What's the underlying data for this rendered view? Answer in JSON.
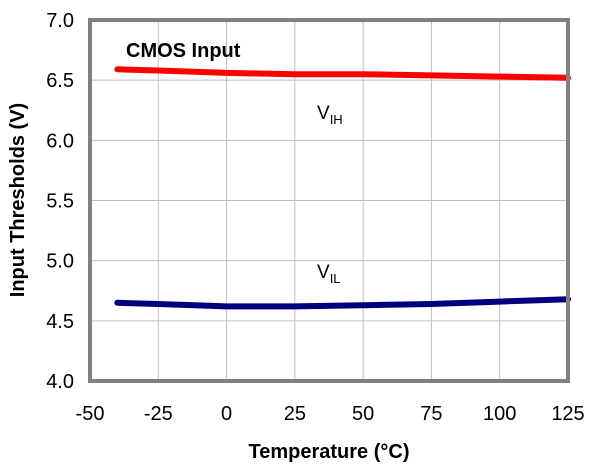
{
  "chart_data": {
    "type": "line",
    "xlabel": "Temperature (°C)",
    "ylabel": "Input Thresholds (V)",
    "xlim": [
      -50,
      125
    ],
    "ylim": [
      4.0,
      7.0
    ],
    "xticks": [
      "-50",
      "-25",
      "0",
      "25",
      "50",
      "75",
      "100",
      "125"
    ],
    "yticks": [
      "4.0",
      "4.5",
      "5.0",
      "5.5",
      "6.0",
      "6.5",
      "7.0"
    ],
    "grid": true,
    "annotations": {
      "title": "CMOS Input",
      "vih_main": "V",
      "vih_sub": "IH",
      "vil_main": "V",
      "vil_sub": "IL"
    },
    "series": [
      {
        "name": "VIH",
        "color": "#ff0000",
        "x": [
          -40,
          -25,
          0,
          25,
          50,
          75,
          100,
          125
        ],
        "y": [
          6.59,
          6.58,
          6.56,
          6.55,
          6.55,
          6.54,
          6.53,
          6.52
        ]
      },
      {
        "name": "VIL",
        "color": "#00007f",
        "x": [
          -40,
          -25,
          0,
          25,
          50,
          75,
          100,
          125
        ],
        "y": [
          4.65,
          4.64,
          4.62,
          4.62,
          4.63,
          4.64,
          4.66,
          4.68
        ]
      }
    ]
  }
}
